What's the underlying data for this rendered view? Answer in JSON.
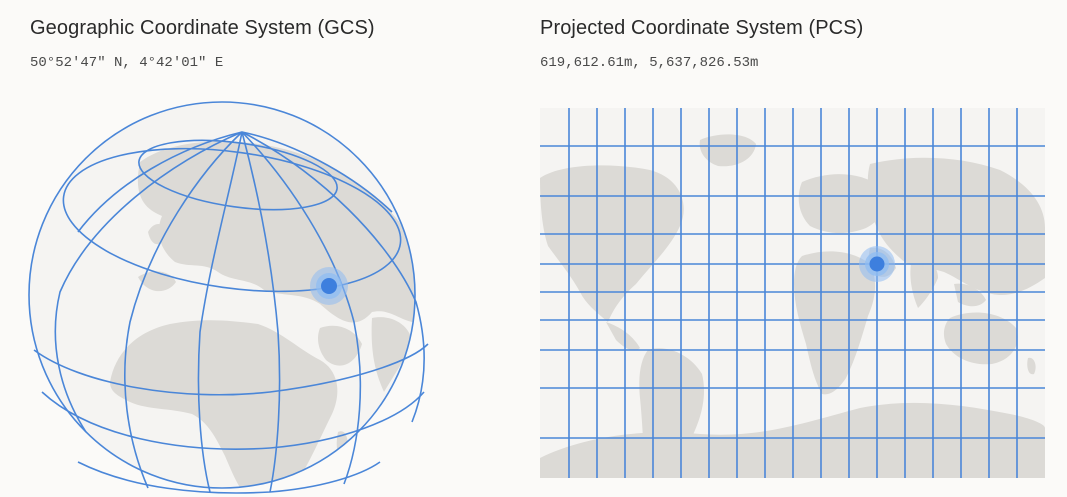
{
  "gcs": {
    "title": "Geographic Coordinate System (GCS)",
    "coordinates": "50°52'47\" N, 4°42'01\" E"
  },
  "pcs": {
    "title": "Projected Coordinate System (PCS)",
    "coordinates": "619,612.61m, 5,637,826.53m"
  },
  "colors": {
    "grid_line": "#4a86d8",
    "land": "#dcdad6",
    "ocean": "#f5f4f2",
    "marker": "#3d7fde",
    "marker_halo": "#8fbcf2",
    "background": "#fbfaf8"
  },
  "icons": {
    "location_marker": "location-dot-icon"
  }
}
